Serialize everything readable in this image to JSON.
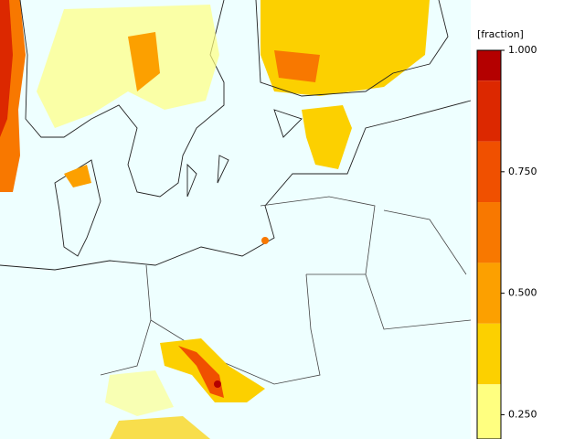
{
  "colorbar": {
    "title": "[fraction]",
    "ylim": [
      0.2,
      1.0
    ],
    "ticks": [
      {
        "value": 1.0,
        "label": "1.000"
      },
      {
        "value": 0.75,
        "label": "0.750"
      },
      {
        "value": 0.5,
        "label": "0.500"
      },
      {
        "value": 0.25,
        "label": "0.250"
      }
    ],
    "bounds": [
      1.0,
      0.9375,
      0.8125,
      0.6875,
      0.5625,
      0.4375,
      0.3125
    ],
    "colors": [
      "#b40000",
      "#dc2800",
      "#f05000",
      "#f87800",
      "#fca000",
      "#fcd000",
      "#ffff80"
    ]
  }
}
